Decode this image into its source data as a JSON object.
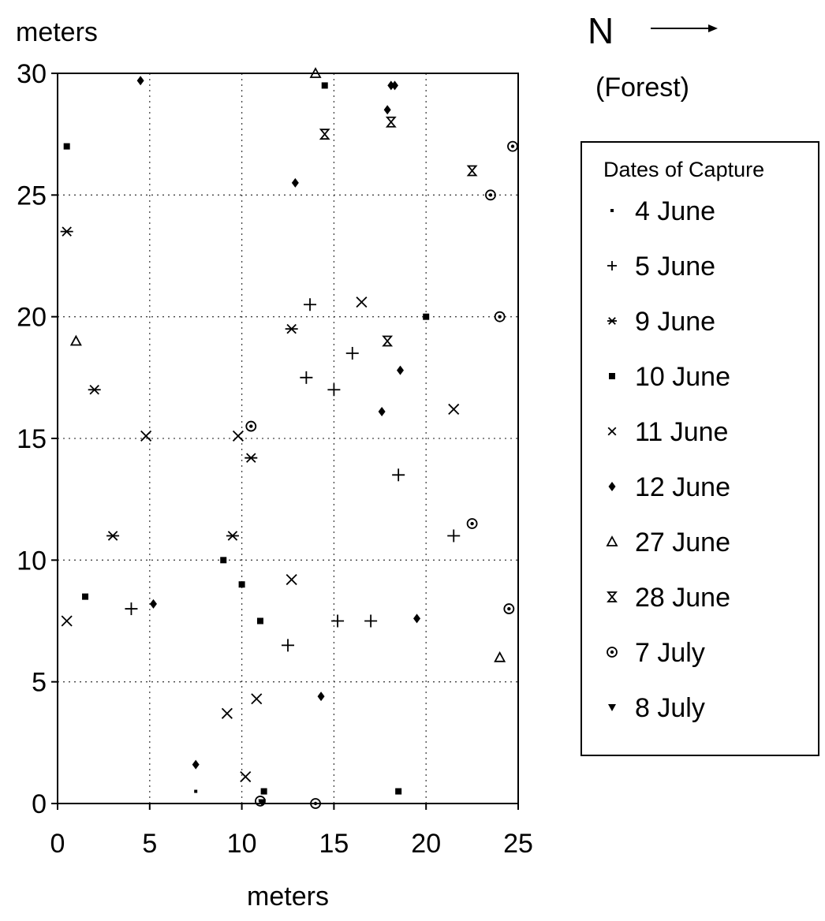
{
  "chart_data": {
    "type": "scatter",
    "title": "",
    "xlabel": "meters",
    "ylabel": "meters",
    "xlim": [
      0,
      25
    ],
    "ylim": [
      0,
      30
    ],
    "x_ticks": [
      0,
      5,
      10,
      15,
      20,
      25
    ],
    "y_ticks": [
      0,
      5,
      10,
      15,
      20,
      25,
      30
    ],
    "grid": "dotted",
    "direction_label": "N",
    "direction_note": "(Forest)",
    "legend": {
      "title": "Dates of Capture",
      "placement": "right"
    },
    "series": [
      {
        "name": "4 June",
        "marker": "dot",
        "points": [
          [
            7.5,
            0.5
          ]
        ]
      },
      {
        "name": "5 June",
        "marker": "plus",
        "points": [
          [
            4,
            8
          ],
          [
            12.5,
            6.5
          ],
          [
            15.2,
            7.5
          ],
          [
            17,
            7.5
          ],
          [
            13.5,
            17.5
          ],
          [
            15,
            17
          ],
          [
            16,
            18.5
          ],
          [
            13.7,
            20.5
          ],
          [
            18.5,
            13.5
          ],
          [
            21.5,
            11
          ]
        ]
      },
      {
        "name": "9 June",
        "marker": "asterisk",
        "points": [
          [
            0.5,
            23.5
          ],
          [
            2,
            17
          ],
          [
            3,
            11
          ],
          [
            9.5,
            11
          ],
          [
            10.5,
            14.2
          ],
          [
            12.7,
            19.5
          ]
        ]
      },
      {
        "name": "10 June",
        "marker": "square",
        "points": [
          [
            0.5,
            27
          ],
          [
            1.5,
            8.5
          ],
          [
            9,
            10
          ],
          [
            10,
            9
          ],
          [
            11,
            7.5
          ],
          [
            11.2,
            0.5
          ],
          [
            18.5,
            0.5
          ],
          [
            14.5,
            29.5
          ],
          [
            20,
            20
          ]
        ]
      },
      {
        "name": "11 June",
        "marker": "x",
        "points": [
          [
            0.5,
            7.5
          ],
          [
            4.8,
            15.1
          ],
          [
            9.8,
            15.1
          ],
          [
            9.2,
            3.7
          ],
          [
            10.2,
            1.1
          ],
          [
            10.8,
            4.3
          ],
          [
            12.7,
            9.2
          ],
          [
            16.5,
            20.6
          ],
          [
            21.5,
            16.2
          ]
        ]
      },
      {
        "name": "12 June",
        "marker": "diamond",
        "points": [
          [
            4.5,
            29.7
          ],
          [
            5.2,
            8.2
          ],
          [
            7.5,
            1.6
          ],
          [
            12.9,
            25.5
          ],
          [
            14.3,
            4.4
          ],
          [
            17.6,
            16.1
          ],
          [
            18.6,
            17.8
          ],
          [
            19.5,
            7.6
          ],
          [
            17.9,
            28.5
          ],
          [
            18.1,
            29.5
          ],
          [
            18.3,
            29.5
          ]
        ]
      },
      {
        "name": "27 June",
        "marker": "triangle",
        "points": [
          [
            1,
            19
          ],
          [
            14,
            30
          ],
          [
            24,
            6
          ]
        ]
      },
      {
        "name": "28 June",
        "marker": "hourglass",
        "points": [
          [
            14.5,
            27.5
          ],
          [
            18.1,
            28
          ],
          [
            17.9,
            19
          ],
          [
            22.5,
            26
          ]
        ]
      },
      {
        "name": "7 July",
        "marker": "circle",
        "points": [
          [
            10.5,
            15.5
          ],
          [
            11,
            0.1
          ],
          [
            14,
            0
          ],
          [
            22.5,
            11.5
          ],
          [
            24.5,
            8
          ],
          [
            23.5,
            25
          ],
          [
            24,
            20
          ],
          [
            24.7,
            27
          ]
        ]
      },
      {
        "name": "8 July",
        "marker": "invtriangle",
        "points": [
          [
            11.1,
            0.05
          ]
        ]
      }
    ]
  }
}
